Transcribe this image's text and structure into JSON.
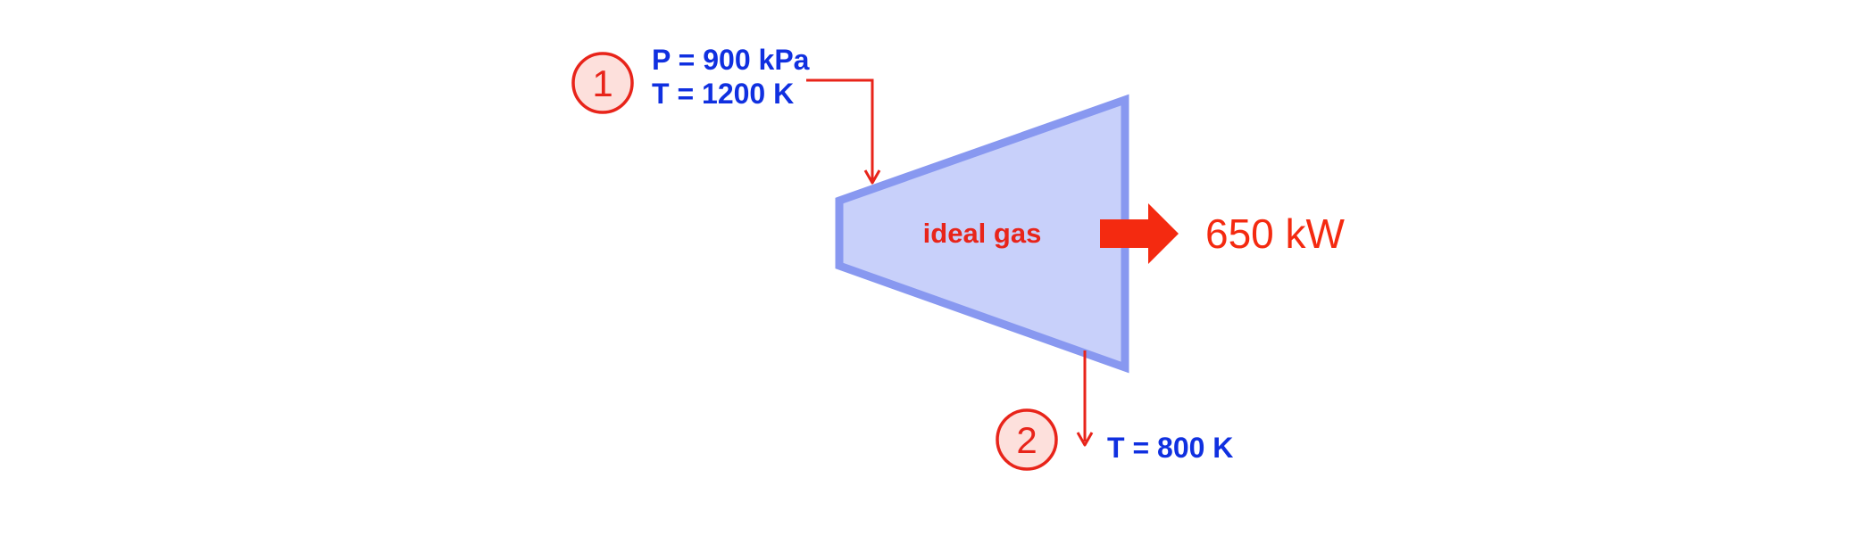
{
  "colors": {
    "turbine_fill": "#c8d0fa",
    "turbine_stroke": "#8898f0",
    "flow_line": "#e8241a",
    "state_circle_fill": "#fde0dc",
    "state_circle_stroke": "#e8241a",
    "state_text": "#e8241a",
    "property_text": "#1030e0",
    "power_arrow": "#f42a10",
    "gas_label": "#e8241a"
  },
  "inlet": {
    "state_number": "1",
    "pressure": "P = 900 kPa",
    "temperature": "T = 1200 K"
  },
  "outlet": {
    "state_number": "2",
    "temperature": "T = 800 K"
  },
  "turbine": {
    "label": "ideal gas"
  },
  "power": {
    "label": "650 kW"
  }
}
